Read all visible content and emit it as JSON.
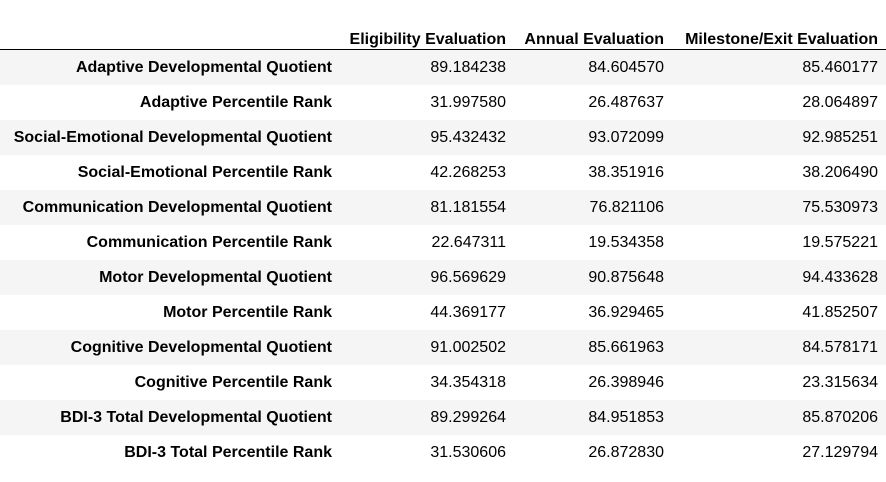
{
  "table": {
    "corner": "",
    "columns": [
      "Eligibility Evaluation",
      "Annual Evaluation",
      "Milestone/Exit Evaluation"
    ],
    "rows": [
      {
        "label": "Adaptive Developmental Quotient",
        "values": [
          "89.184238",
          "84.604570",
          "85.460177"
        ]
      },
      {
        "label": "Adaptive Percentile Rank",
        "values": [
          "31.997580",
          "26.487637",
          "28.064897"
        ]
      },
      {
        "label": "Social-Emotional Developmental Quotient",
        "values": [
          "95.432432",
          "93.072099",
          "92.985251"
        ]
      },
      {
        "label": "Social-Emotional Percentile Rank",
        "values": [
          "42.268253",
          "38.351916",
          "38.206490"
        ]
      },
      {
        "label": "Communication Developmental Quotient",
        "values": [
          "81.181554",
          "76.821106",
          "75.530973"
        ]
      },
      {
        "label": "Communication Percentile Rank",
        "values": [
          "22.647311",
          "19.534358",
          "19.575221"
        ]
      },
      {
        "label": "Motor Developmental Quotient",
        "values": [
          "96.569629",
          "90.875648",
          "94.433628"
        ]
      },
      {
        "label": "Motor Percentile Rank",
        "values": [
          "44.369177",
          "36.929465",
          "41.852507"
        ]
      },
      {
        "label": "Cognitive Developmental Quotient",
        "values": [
          "91.002502",
          "85.661963",
          "84.578171"
        ]
      },
      {
        "label": "Cognitive Percentile Rank",
        "values": [
          "34.354318",
          "26.398946",
          "23.315634"
        ]
      },
      {
        "label": "BDI-3 Total Developmental Quotient",
        "values": [
          "89.299264",
          "84.951853",
          "85.870206"
        ]
      },
      {
        "label": "BDI-3 Total Percentile Rank",
        "values": [
          "31.530606",
          "26.872830",
          "27.129794"
        ]
      }
    ]
  }
}
